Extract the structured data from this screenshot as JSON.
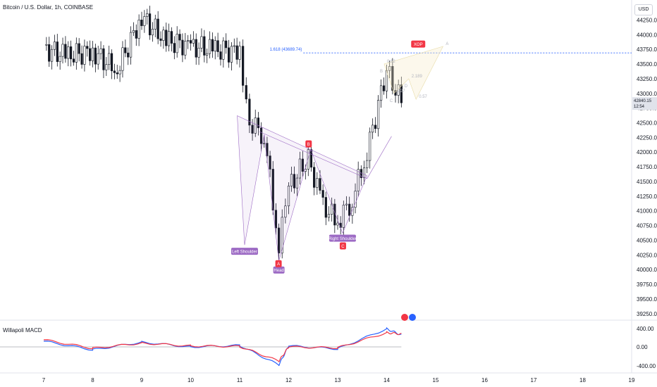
{
  "header": {
    "title": "Bitcoin / U.S. Dollar, 1h, COINBASE"
  },
  "currency_badge": "USD",
  "price_tag": {
    "price": "42840.15",
    "countdown": "12:54"
  },
  "fib_label": "1.618 (43689.74)",
  "xop_label": "XOP",
  "pattern_labels": {
    "left_shoulder": "Left Shoulder",
    "head": "Head",
    "right_shoulder": "Right Shoulder",
    "A": "A",
    "B": "B",
    "C": "C"
  },
  "harmonic_labels": [
    "0.62",
    "1.27",
    "2.189",
    "0.57",
    "A",
    "B",
    "C",
    "D"
  ],
  "macd_title": "Willapoli MACD",
  "macd_ticks": [
    "400.00",
    "0.00",
    "-400.00"
  ],
  "colors": {
    "up": "#131722",
    "down": "#131722",
    "macd": "#2962ff",
    "signal": "#f23645",
    "pattern": "#9c6ac4",
    "fib": "#2962ff",
    "xop": "#f23645"
  },
  "chart_data": {
    "type": "line",
    "title": "Bitcoin / U.S. Dollar, 1h, COINBASE",
    "xlabel": "",
    "ylabel": "",
    "x": [
      "7",
      "8",
      "9",
      "10",
      "11",
      "12",
      "13",
      "14",
      "15",
      "16",
      "17",
      "18",
      "19"
    ],
    "y_ticks": [
      "44250.00",
      "44000.00",
      "43750.00",
      "43500.00",
      "43250.00",
      "43000.00",
      "42750.00",
      "42500.00",
      "42250.00",
      "42000.00",
      "41750.00",
      "41500.00",
      "41250.00",
      "41000.00",
      "40750.00",
      "40500.00",
      "40250.00",
      "40000.00",
      "39750.00",
      "39500.00",
      "39250.00"
    ],
    "ylim": [
      39200,
      44650
    ],
    "series": [
      {
        "name": "",
        "x": [
          "7",
          "7.5",
          "8",
          "8.5",
          "9",
          "9.5",
          "10",
          "10.5",
          "11",
          "11.2",
          "11.5",
          "11.8",
          "12",
          "12.4",
          "12.7",
          "13",
          "13.3",
          "13.6",
          "14",
          "14.3"
        ],
        "values": [
          43750,
          43650,
          43700,
          43400,
          44300,
          43900,
          43800,
          43750,
          43700,
          42500,
          42300,
          40400,
          41400,
          41900,
          41100,
          40800,
          41200,
          42000,
          43400,
          42840
        ]
      }
    ],
    "macd": {
      "x": [
        "7",
        "8",
        "9",
        "10",
        "11",
        "11.8",
        "12",
        "13",
        "14",
        "14.3"
      ],
      "values": [
        120,
        -60,
        100,
        0,
        30,
        -380,
        20,
        -40,
        380,
        250
      ],
      "signal": [
        150,
        -30,
        80,
        20,
        10,
        -300,
        0,
        -20,
        300,
        270
      ]
    }
  }
}
